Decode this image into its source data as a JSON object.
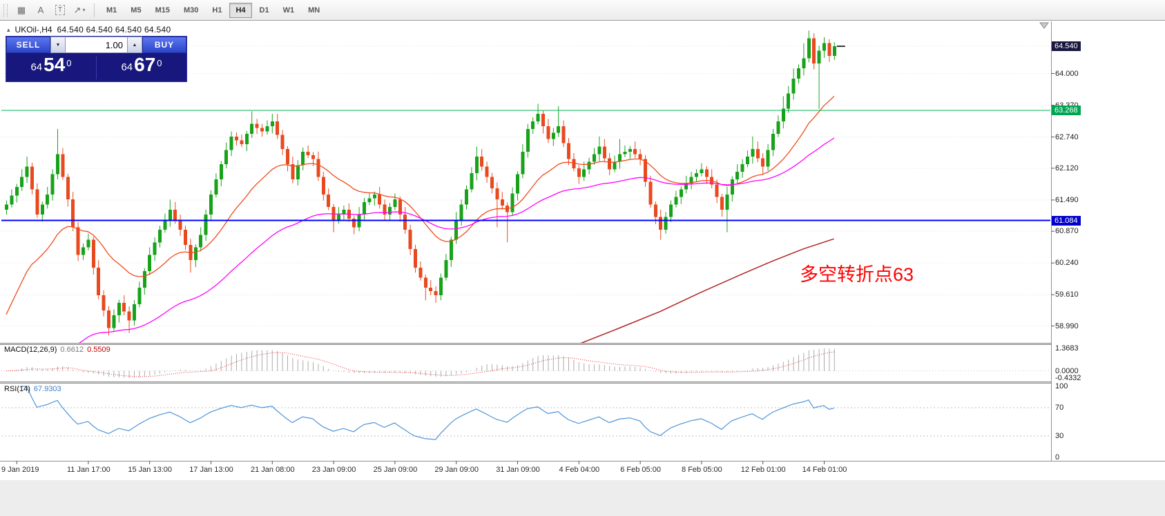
{
  "icons": {
    "panel_toggle": "▴",
    "caret_up": "▲",
    "caret_down": "▼"
  },
  "toolbar": {
    "tools": [
      {
        "name": "grid",
        "glyph": "▦"
      },
      {
        "name": "text-label",
        "glyph": "A"
      },
      {
        "name": "text-box",
        "glyph": "T",
        "boxed": true
      },
      {
        "name": "arrows",
        "glyph": "↗",
        "caret": true
      }
    ],
    "timeframes": [
      {
        "label": "M1"
      },
      {
        "label": "M5"
      },
      {
        "label": "M15"
      },
      {
        "label": "M30"
      },
      {
        "label": "H1"
      },
      {
        "label": "H4",
        "active": true
      },
      {
        "label": "D1"
      },
      {
        "label": "W1"
      },
      {
        "label": "MN"
      }
    ]
  },
  "chart": {
    "title": "UKOil-,H4",
    "ohlc_text": "64.540 64.540 64.540 64.540",
    "annotation": {
      "text": "多空转折点63",
      "color": "#ff0000"
    },
    "y_axis_labels": [
      "64.540",
      "64.000",
      "63.370",
      "62.740",
      "62.120",
      "61.490",
      "60.870",
      "60.240",
      "59.610",
      "58.990"
    ],
    "price_tags": [
      {
        "value": "64.540",
        "price": 64.54,
        "bg": "#17173f",
        "type": "bid"
      },
      {
        "value": "63.268",
        "price": 63.268,
        "bg": "#00a551",
        "type": "green-line"
      },
      {
        "value": "61.084",
        "price": 61.084,
        "bg": "#0000cc",
        "type": "blue-line"
      }
    ],
    "hlines": [
      {
        "price": 63.268,
        "color": "#00b050",
        "width": 1
      },
      {
        "price": 61.084,
        "color": "#0000ff",
        "width": 2
      }
    ],
    "x_axis_labels": [
      {
        "bar": 2,
        "label": "9 Jan 2019"
      },
      {
        "bar": 16,
        "label": "11 Jan 17:00"
      },
      {
        "bar": 28,
        "label": "15 Jan 13:00"
      },
      {
        "bar": 40,
        "label": "17 Jan 13:00"
      },
      {
        "bar": 52,
        "label": "21 Jan 08:00"
      },
      {
        "bar": 64,
        "label": "23 Jan 09:00"
      },
      {
        "bar": 76,
        "label": "25 Jan 09:00"
      },
      {
        "bar": 88,
        "label": "29 Jan 09:00"
      },
      {
        "bar": 100,
        "label": "31 Jan 09:00"
      },
      {
        "bar": 112,
        "label": "4 Feb 04:00"
      },
      {
        "bar": 124,
        "label": "6 Feb 05:00"
      },
      {
        "bar": 136,
        "label": "8 Feb 05:00"
      },
      {
        "bar": 148,
        "label": "12 Feb 01:00"
      },
      {
        "bar": 160,
        "label": "14 Feb 01:00"
      }
    ],
    "colors": {
      "bull": "#17a21a",
      "bear": "#e8491f",
      "ma_fast": "#f04a1a",
      "ma_medium": "#ff00ff",
      "trend": "#b22222",
      "grid": "#dcdcdc",
      "macd_hist": "#ababab",
      "macd_signal": "#e03030",
      "rsi": "#4f94d8",
      "tick": "#555555"
    }
  },
  "trade_panel": {
    "sell_label": "SELL",
    "buy_label": "BUY",
    "volume": "1.00",
    "bid_small": "64",
    "bid_big": "54",
    "bid_sup": "0",
    "ask_small": "64",
    "ask_big": "67",
    "ask_sup": "0"
  },
  "macd": {
    "label": "MACD(12,26,9)",
    "value_main": "0.6612",
    "value_signal": "0.5509",
    "scale": [
      "1.3683",
      "0.0000",
      "-0.4332"
    ]
  },
  "rsi": {
    "label": "RSI(14)",
    "value": "67.9303",
    "scale": [
      "100",
      "70",
      "30",
      "0"
    ],
    "levels": [
      70,
      30
    ]
  },
  "chart_data": {
    "type": "candlestick",
    "symbol": "UKOil-",
    "period": "H4",
    "current_bar_ohlc": [
      64.54,
      64.54,
      64.54,
      64.54
    ],
    "bid": 64.54,
    "ask": 64.67,
    "visible_price_range": [
      58.65,
      65.02
    ],
    "y_gridlines": [
      64.54,
      64.0,
      63.37,
      62.74,
      62.12,
      61.49,
      60.87,
      60.24,
      59.61,
      58.99
    ],
    "horizontal_line_prices": [
      63.268,
      61.084
    ],
    "annotation_text": "多空转折点63",
    "macd_displayed": {
      "params": [
        12,
        26,
        9
      ],
      "main": 0.6612,
      "signal": 0.5509,
      "scale_max": 1.3683,
      "scale_min": -0.4332
    },
    "rsi_displayed": {
      "params": [
        14
      ],
      "value": 67.9303,
      "levels": [
        70,
        30
      ],
      "scale": [
        0,
        100
      ]
    },
    "trend_line_points": [
      [
        112,
        58.63
      ],
      [
        120,
        58.95
      ],
      [
        128,
        59.28
      ],
      [
        136,
        59.66
      ],
      [
        144,
        60.02
      ],
      [
        150,
        60.28
      ],
      [
        156,
        60.52
      ],
      [
        162,
        60.72
      ]
    ],
    "candles_ohlc": [
      [
        61.3,
        61.48,
        61.2,
        61.4
      ],
      [
        61.4,
        61.7,
        61.34,
        61.58
      ],
      [
        61.58,
        61.81,
        61.44,
        61.75
      ],
      [
        61.75,
        62.1,
        61.67,
        61.95
      ],
      [
        61.95,
        62.35,
        61.83,
        62.15
      ],
      [
        62.15,
        62.23,
        61.6,
        61.7
      ],
      [
        61.7,
        61.82,
        61.14,
        61.2
      ],
      [
        61.2,
        61.46,
        61.06,
        61.4
      ],
      [
        61.4,
        61.75,
        61.32,
        61.6
      ],
      [
        61.6,
        62.1,
        61.48,
        62.0
      ],
      [
        62.0,
        62.9,
        61.9,
        62.4
      ],
      [
        62.4,
        62.52,
        61.89,
        61.95
      ],
      [
        61.95,
        62.01,
        61.36,
        61.5
      ],
      [
        61.5,
        61.65,
        60.87,
        60.95
      ],
      [
        60.95,
        61.05,
        60.28,
        60.4
      ],
      [
        60.4,
        60.63,
        60.3,
        60.55
      ],
      [
        60.55,
        60.82,
        60.49,
        60.7
      ],
      [
        60.7,
        60.76,
        60.01,
        60.15
      ],
      [
        60.15,
        60.3,
        59.52,
        59.6
      ],
      [
        59.6,
        59.7,
        59.18,
        59.3
      ],
      [
        59.3,
        59.38,
        58.8,
        58.95
      ],
      [
        58.95,
        59.32,
        58.89,
        59.2
      ],
      [
        59.2,
        59.51,
        59.06,
        59.45
      ],
      [
        59.45,
        59.6,
        59.2,
        59.28
      ],
      [
        59.28,
        59.38,
        58.85,
        59.1
      ],
      [
        59.1,
        59.5,
        59.0,
        59.42
      ],
      [
        59.42,
        59.87,
        59.36,
        59.75
      ],
      [
        59.75,
        60.14,
        59.61,
        60.08
      ],
      [
        60.08,
        60.55,
        60.0,
        60.4
      ],
      [
        60.4,
        60.75,
        60.28,
        60.65
      ],
      [
        60.65,
        60.98,
        60.55,
        60.9
      ],
      [
        60.9,
        61.22,
        60.84,
        61.1
      ],
      [
        61.1,
        61.5,
        60.96,
        61.3
      ],
      [
        61.3,
        61.45,
        61.02,
        61.1
      ],
      [
        61.1,
        61.2,
        60.78,
        60.9
      ],
      [
        60.9,
        60.98,
        60.5,
        60.6
      ],
      [
        60.6,
        60.72,
        60.05,
        60.3
      ],
      [
        60.3,
        60.61,
        60.16,
        60.55
      ],
      [
        60.55,
        60.95,
        60.47,
        60.8
      ],
      [
        60.8,
        61.3,
        60.68,
        61.2
      ],
      [
        61.2,
        61.68,
        61.1,
        61.6
      ],
      [
        61.6,
        62.02,
        61.54,
        61.9
      ],
      [
        61.9,
        62.26,
        61.76,
        62.2
      ],
      [
        62.2,
        62.63,
        62.12,
        62.48
      ],
      [
        62.48,
        62.85,
        62.36,
        62.75
      ],
      [
        62.75,
        62.83,
        62.57,
        62.67
      ],
      [
        62.67,
        62.79,
        62.54,
        62.6
      ],
      [
        62.6,
        62.86,
        62.46,
        62.8
      ],
      [
        62.8,
        63.25,
        62.72,
        63.0
      ],
      [
        63.0,
        63.1,
        62.8,
        62.92
      ],
      [
        62.92,
        63.0,
        62.75,
        62.85
      ],
      [
        62.85,
        63.07,
        62.79,
        62.95
      ],
      [
        62.95,
        63.2,
        62.81,
        63.05
      ],
      [
        63.05,
        63.2,
        62.7,
        62.78
      ],
      [
        62.78,
        62.88,
        62.38,
        62.5
      ],
      [
        62.5,
        62.56,
        62.06,
        62.2
      ],
      [
        62.2,
        62.35,
        61.82,
        61.9
      ],
      [
        61.9,
        62.28,
        61.78,
        62.18
      ],
      [
        62.18,
        62.53,
        62.08,
        62.45
      ],
      [
        62.45,
        62.57,
        62.32,
        62.38
      ],
      [
        62.38,
        62.44,
        62.16,
        62.3
      ],
      [
        62.3,
        62.45,
        61.87,
        61.95
      ],
      [
        61.95,
        62.05,
        61.48,
        61.6
      ],
      [
        61.6,
        61.72,
        61.29,
        61.35
      ],
      [
        61.35,
        61.41,
        60.85,
        61.1
      ],
      [
        61.1,
        61.35,
        61.02,
        61.2
      ],
      [
        61.2,
        61.38,
        61.1,
        61.3
      ],
      [
        61.3,
        61.42,
        61.06,
        61.12
      ],
      [
        61.12,
        61.18,
        60.81,
        60.95
      ],
      [
        60.95,
        61.35,
        60.87,
        61.2
      ],
      [
        61.2,
        61.53,
        61.1,
        61.45
      ],
      [
        61.45,
        61.64,
        61.39,
        61.52
      ],
      [
        61.52,
        61.66,
        61.38,
        61.6
      ],
      [
        61.6,
        61.75,
        61.32,
        61.4
      ],
      [
        61.4,
        61.5,
        61.08,
        61.2
      ],
      [
        61.2,
        61.43,
        61.1,
        61.35
      ],
      [
        61.35,
        61.62,
        61.29,
        61.5
      ],
      [
        61.5,
        61.56,
        61.06,
        61.2
      ],
      [
        61.2,
        61.35,
        60.82,
        60.9
      ],
      [
        60.9,
        61.0,
        60.4,
        60.52
      ],
      [
        60.52,
        60.6,
        60.05,
        60.15
      ],
      [
        60.15,
        60.27,
        59.89,
        59.95
      ],
      [
        59.95,
        60.01,
        59.5,
        59.75
      ],
      [
        59.75,
        59.9,
        59.6,
        59.68
      ],
      [
        59.68,
        59.78,
        59.45,
        59.6
      ],
      [
        59.6,
        60.03,
        59.5,
        59.95
      ],
      [
        59.95,
        60.42,
        59.89,
        60.3
      ],
      [
        60.3,
        60.76,
        60.16,
        60.7
      ],
      [
        60.7,
        61.25,
        60.62,
        61.1
      ],
      [
        61.1,
        61.5,
        60.98,
        61.4
      ],
      [
        61.4,
        61.78,
        61.3,
        61.7
      ],
      [
        61.7,
        62.14,
        61.64,
        62.02
      ],
      [
        62.02,
        62.55,
        61.88,
        62.35
      ],
      [
        62.35,
        62.5,
        62.07,
        62.15
      ],
      [
        62.15,
        62.25,
        61.83,
        61.95
      ],
      [
        61.95,
        62.03,
        61.62,
        61.72
      ],
      [
        61.72,
        61.84,
        60.95,
        61.5
      ],
      [
        61.5,
        61.65,
        61.3,
        61.38
      ],
      [
        61.38,
        61.44,
        60.65,
        61.25
      ],
      [
        61.25,
        61.74,
        61.17,
        61.62
      ],
      [
        61.62,
        62.06,
        61.48,
        62.0
      ],
      [
        62.0,
        62.6,
        61.92,
        62.45
      ],
      [
        62.45,
        63.0,
        62.33,
        62.9
      ],
      [
        62.9,
        63.13,
        62.8,
        63.05
      ],
      [
        63.05,
        63.4,
        62.99,
        63.2
      ],
      [
        63.2,
        63.26,
        62.81,
        62.95
      ],
      [
        62.95,
        63.1,
        62.62,
        62.7
      ],
      [
        62.7,
        62.92,
        62.56,
        62.82
      ],
      [
        62.82,
        63.35,
        62.74,
        62.95
      ],
      [
        62.95,
        63.07,
        62.54,
        62.62
      ],
      [
        62.62,
        62.72,
        62.18,
        62.3
      ],
      [
        62.3,
        62.42,
        62.06,
        62.12
      ],
      [
        62.12,
        62.18,
        61.81,
        61.95
      ],
      [
        61.95,
        62.25,
        61.87,
        62.1
      ],
      [
        62.1,
        62.33,
        62.0,
        62.25
      ],
      [
        62.25,
        62.52,
        62.19,
        62.4
      ],
      [
        62.4,
        62.75,
        62.26,
        62.55
      ],
      [
        62.55,
        62.7,
        62.24,
        62.32
      ],
      [
        62.32,
        62.42,
        61.98,
        62.1
      ],
      [
        62.1,
        62.37,
        62.04,
        62.25
      ],
      [
        62.25,
        62.7,
        62.11,
        62.4
      ],
      [
        62.4,
        62.57,
        62.34,
        62.45
      ],
      [
        62.45,
        62.56,
        62.31,
        62.5
      ],
      [
        62.5,
        62.65,
        62.32,
        62.4
      ],
      [
        62.4,
        62.5,
        62.18,
        62.3
      ],
      [
        62.3,
        62.38,
        61.75,
        61.85
      ],
      [
        61.85,
        61.97,
        61.34,
        61.4
      ],
      [
        61.4,
        61.46,
        61.01,
        61.15
      ],
      [
        61.15,
        61.3,
        60.7,
        60.9
      ],
      [
        60.9,
        61.25,
        60.82,
        61.15
      ],
      [
        61.15,
        61.48,
        61.05,
        61.4
      ],
      [
        61.4,
        61.67,
        61.34,
        61.55
      ],
      [
        61.55,
        61.76,
        61.41,
        61.7
      ],
      [
        61.7,
        61.97,
        61.62,
        61.82
      ],
      [
        61.82,
        62.05,
        61.7,
        61.95
      ],
      [
        61.95,
        62.1,
        61.85,
        62.02
      ],
      [
        62.02,
        62.22,
        61.96,
        62.1
      ],
      [
        62.1,
        62.16,
        61.81,
        61.95
      ],
      [
        61.95,
        62.1,
        61.72,
        61.8
      ],
      [
        61.8,
        61.9,
        61.43,
        61.55
      ],
      [
        61.55,
        61.61,
        61.16,
        61.3
      ],
      [
        61.3,
        61.75,
        60.85,
        61.6
      ],
      [
        61.6,
        61.96,
        61.46,
        61.9
      ],
      [
        61.9,
        62.2,
        61.82,
        62.05
      ],
      [
        62.05,
        62.3,
        61.93,
        62.2
      ],
      [
        62.2,
        62.47,
        62.14,
        62.35
      ],
      [
        62.35,
        62.75,
        62.21,
        62.5
      ],
      [
        62.5,
        62.65,
        62.24,
        62.32
      ],
      [
        62.32,
        62.42,
        62.01,
        62.15
      ],
      [
        62.15,
        62.6,
        62.07,
        62.48
      ],
      [
        62.48,
        62.9,
        62.36,
        62.8
      ],
      [
        62.8,
        63.17,
        62.74,
        63.05
      ],
      [
        63.05,
        63.55,
        62.91,
        63.3
      ],
      [
        63.3,
        63.75,
        63.22,
        63.6
      ],
      [
        63.6,
        64.1,
        63.48,
        63.9
      ],
      [
        63.9,
        64.18,
        63.8,
        64.1
      ],
      [
        64.1,
        64.6,
        63.96,
        64.3
      ],
      [
        64.3,
        64.85,
        64.22,
        64.7
      ],
      [
        64.7,
        64.8,
        64.08,
        64.2
      ],
      [
        64.2,
        64.55,
        63.3,
        64.45
      ],
      [
        64.45,
        64.72,
        64.31,
        64.6
      ],
      [
        64.6,
        64.68,
        64.23,
        64.35
      ],
      [
        64.35,
        64.62,
        64.27,
        64.54
      ]
    ]
  }
}
